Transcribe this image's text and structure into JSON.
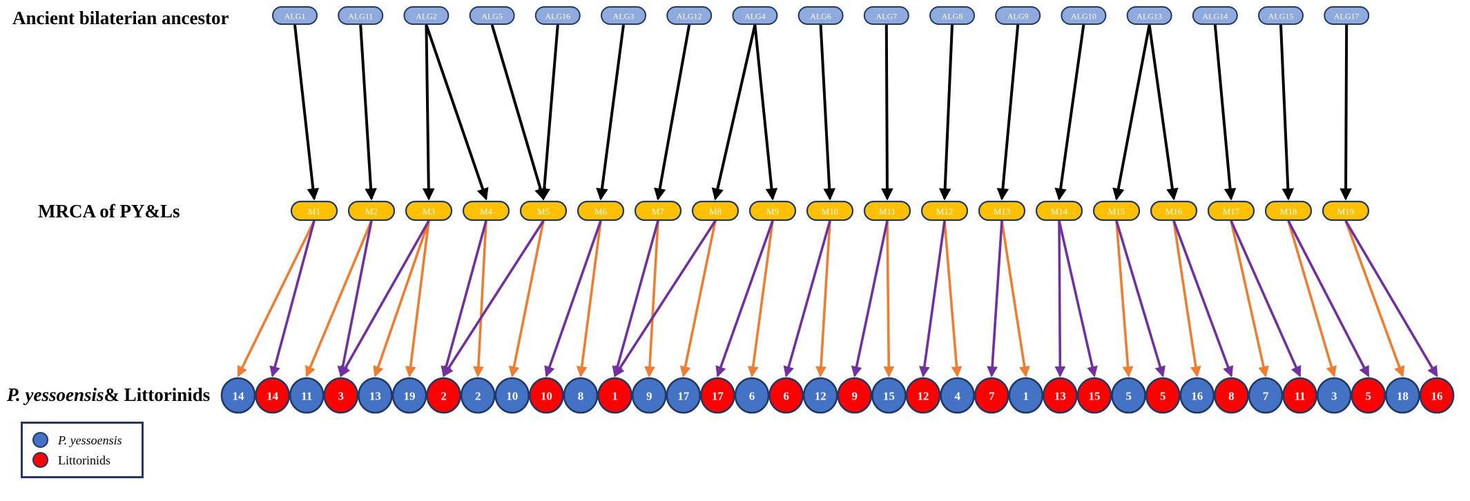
{
  "labels": {
    "ancestor_row": "Ancient bilaterian ancestor",
    "mrca_row": "MRCA of PY&Ls",
    "species_row_italic": "P. yessoensis",
    "species_row_rest": "& Littorinids"
  },
  "legend": {
    "items": [
      {
        "label": "P. yessoensis",
        "italic": true,
        "color": "#4472C4"
      },
      {
        "label": "Littorinids",
        "italic": false,
        "color": "#FF0000"
      }
    ]
  },
  "colors": {
    "alg_fill": "#8FAADC",
    "mrca_fill": "#FFC000",
    "node_border": "#1F3864",
    "py_fill": "#4472C4",
    "littorinid_fill": "#FF0000",
    "black_arrow": "#000000",
    "orange_arrow": "#ED7D31",
    "purple_arrow": "#7030A0",
    "node_text": "#FFFFFF"
  },
  "diagram": {
    "alg_row": [
      "ALG1",
      "ALG11",
      "ALG2",
      "ALG5",
      "ALG16",
      "ALG3",
      "ALG12",
      "ALG4",
      "ALG6",
      "ALG7",
      "ALG8",
      "ALG9",
      "ALG10",
      "ALG13",
      "ALG14",
      "ALG15",
      "ALG17"
    ],
    "mrca_row": [
      "M1",
      "M2",
      "M3",
      "M4",
      "M5",
      "M6",
      "M7",
      "M8",
      "M9",
      "M10",
      "M11",
      "M12",
      "M13",
      "M14",
      "M15",
      "M16",
      "M17",
      "M18",
      "M19"
    ],
    "chromosomes": [
      {
        "sp": "py",
        "n": "14"
      },
      {
        "sp": "lit",
        "n": "14"
      },
      {
        "sp": "py",
        "n": "11"
      },
      {
        "sp": "lit",
        "n": "3"
      },
      {
        "sp": "py",
        "n": "13"
      },
      {
        "sp": "py",
        "n": "19"
      },
      {
        "sp": "lit",
        "n": "2"
      },
      {
        "sp": "py",
        "n": "2"
      },
      {
        "sp": "py",
        "n": "10"
      },
      {
        "sp": "lit",
        "n": "10"
      },
      {
        "sp": "py",
        "n": "8"
      },
      {
        "sp": "lit",
        "n": "1"
      },
      {
        "sp": "py",
        "n": "9"
      },
      {
        "sp": "py",
        "n": "17"
      },
      {
        "sp": "lit",
        "n": "17"
      },
      {
        "sp": "py",
        "n": "6"
      },
      {
        "sp": "lit",
        "n": "6"
      },
      {
        "sp": "py",
        "n": "12"
      },
      {
        "sp": "lit",
        "n": "9"
      },
      {
        "sp": "py",
        "n": "15"
      },
      {
        "sp": "lit",
        "n": "12"
      },
      {
        "sp": "py",
        "n": "4"
      },
      {
        "sp": "lit",
        "n": "7"
      },
      {
        "sp": "py",
        "n": "1"
      },
      {
        "sp": "lit",
        "n": "13"
      },
      {
        "sp": "lit",
        "n": "15"
      },
      {
        "sp": "py",
        "n": "5"
      },
      {
        "sp": "lit",
        "n": "5"
      },
      {
        "sp": "py",
        "n": "16"
      },
      {
        "sp": "lit",
        "n": "8"
      },
      {
        "sp": "py",
        "n": "7"
      },
      {
        "sp": "lit",
        "n": "11"
      },
      {
        "sp": "py",
        "n": "3"
      },
      {
        "sp": "lit",
        "n": "5"
      },
      {
        "sp": "py",
        "n": "18"
      },
      {
        "sp": "lit",
        "n": "16"
      }
    ],
    "alg_to_mrca": [
      [
        "ALG1",
        "M1"
      ],
      [
        "ALG11",
        "M2"
      ],
      [
        "ALG2",
        "M3"
      ],
      [
        "ALG2",
        "M4"
      ],
      [
        "ALG5",
        "M5"
      ],
      [
        "ALG16",
        "M5"
      ],
      [
        "ALG3",
        "M6"
      ],
      [
        "ALG12",
        "M7"
      ],
      [
        "ALG4",
        "M8"
      ],
      [
        "ALG4",
        "M9"
      ],
      [
        "ALG6",
        "M10"
      ],
      [
        "ALG7",
        "M11"
      ],
      [
        "ALG8",
        "M12"
      ],
      [
        "ALG9",
        "M13"
      ],
      [
        "ALG10",
        "M14"
      ],
      [
        "ALG13",
        "M15"
      ],
      [
        "ALG13",
        "M16"
      ],
      [
        "ALG14",
        "M17"
      ],
      [
        "ALG15",
        "M18"
      ],
      [
        "ALG17",
        "M19"
      ]
    ],
    "mrca_to_chrom": [
      [
        "M1",
        0,
        "orange"
      ],
      [
        "M1",
        1,
        "purple"
      ],
      [
        "M2",
        2,
        "orange"
      ],
      [
        "M2",
        3,
        "purple"
      ],
      [
        "M3",
        4,
        "orange"
      ],
      [
        "M3",
        5,
        "orange"
      ],
      [
        "M3",
        3,
        "purple"
      ],
      [
        "M4",
        7,
        "orange"
      ],
      [
        "M4",
        6,
        "purple"
      ],
      [
        "M5",
        8,
        "orange"
      ],
      [
        "M5",
        6,
        "purple"
      ],
      [
        "M6",
        10,
        "orange"
      ],
      [
        "M6",
        9,
        "purple"
      ],
      [
        "M7",
        12,
        "orange"
      ],
      [
        "M7",
        11,
        "purple"
      ],
      [
        "M8",
        13,
        "orange"
      ],
      [
        "M8",
        11,
        "purple"
      ],
      [
        "M9",
        15,
        "orange"
      ],
      [
        "M9",
        14,
        "purple"
      ],
      [
        "M10",
        17,
        "orange"
      ],
      [
        "M10",
        16,
        "purple"
      ],
      [
        "M11",
        19,
        "orange"
      ],
      [
        "M11",
        18,
        "purple"
      ],
      [
        "M12",
        21,
        "orange"
      ],
      [
        "M12",
        20,
        "purple"
      ],
      [
        "M13",
        23,
        "orange"
      ],
      [
        "M13",
        22,
        "purple"
      ],
      [
        "M14",
        24,
        "purple"
      ],
      [
        "M14",
        25,
        "purple"
      ],
      [
        "M15",
        26,
        "orange"
      ],
      [
        "M15",
        27,
        "purple"
      ],
      [
        "M16",
        28,
        "orange"
      ],
      [
        "M16",
        29,
        "purple"
      ],
      [
        "M17",
        30,
        "orange"
      ],
      [
        "M17",
        31,
        "purple"
      ],
      [
        "M18",
        32,
        "orange"
      ],
      [
        "M18",
        33,
        "purple"
      ],
      [
        "M19",
        34,
        "orange"
      ],
      [
        "M19",
        35,
        "purple"
      ]
    ]
  }
}
